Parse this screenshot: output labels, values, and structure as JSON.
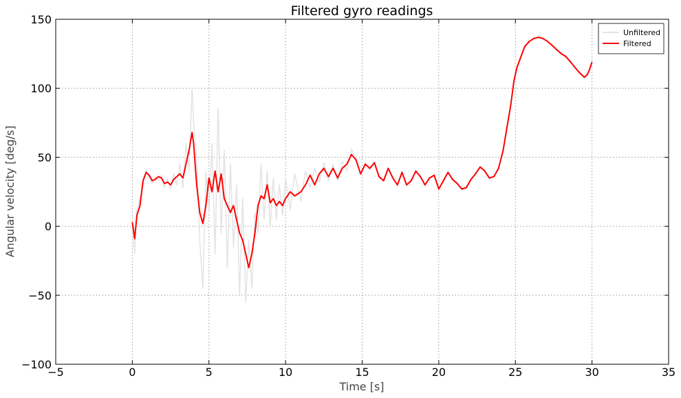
{
  "chart_data": {
    "type": "line",
    "title": "Filtered gyro readings",
    "xlabel": "Time [s]",
    "ylabel": "Angular velocity [deg/s]",
    "x": [
      0,
      0.15,
      0.3,
      0.5,
      0.7,
      0.9,
      1.1,
      1.3,
      1.5,
      1.7,
      1.9,
      2.1,
      2.3,
      2.5,
      2.7,
      2.9,
      3.1,
      3.3,
      3.5,
      3.7,
      3.9,
      4.0,
      4.2,
      4.4,
      4.6,
      4.8,
      5.0,
      5.2,
      5.4,
      5.6,
      5.8,
      6.0,
      6.2,
      6.4,
      6.6,
      6.8,
      7.0,
      7.2,
      7.4,
      7.6,
      7.8,
      8.0,
      8.2,
      8.4,
      8.6,
      8.8,
      9.0,
      9.2,
      9.4,
      9.6,
      9.8,
      10.0,
      10.3,
      10.6,
      11.0,
      11.3,
      11.6,
      11.9,
      12.2,
      12.5,
      12.8,
      13.1,
      13.4,
      13.7,
      14.0,
      14.3,
      14.6,
      14.9,
      15.2,
      15.5,
      15.8,
      16.1,
      16.4,
      16.7,
      17.0,
      17.3,
      17.6,
      17.9,
      18.2,
      18.5,
      18.8,
      19.1,
      19.4,
      19.7,
      20.0,
      20.3,
      20.6,
      20.9,
      21.2,
      21.5,
      21.8,
      22.1,
      22.4,
      22.7,
      23.0,
      23.3,
      23.6,
      23.9,
      24.2,
      24.5,
      24.7,
      24.9,
      25.1,
      25.3,
      25.6,
      25.9,
      26.2,
      26.5,
      26.8,
      27.1,
      27.4,
      27.7,
      28.0,
      28.3,
      28.6,
      28.9,
      29.2,
      29.5,
      29.7,
      29.85,
      30.0
    ],
    "series": [
      {
        "name": "Unfiltered",
        "color": "#e3e3e3",
        "values": [
          2,
          -20,
          12,
          20,
          30,
          41,
          35,
          31,
          36,
          33,
          37,
          28,
          34,
          27,
          38,
          30,
          45,
          28,
          60,
          40,
          100,
          75,
          50,
          -10,
          -45,
          40,
          10,
          60,
          -20,
          85,
          -5,
          55,
          -30,
          45,
          -15,
          30,
          -50,
          20,
          -55,
          -10,
          -45,
          10,
          -5,
          45,
          5,
          40,
          0,
          35,
          5,
          30,
          8,
          35,
          12,
          38,
          18,
          40,
          28,
          42,
          32,
          46,
          33,
          45,
          33,
          47,
          40,
          56,
          49,
          37,
          46,
          41,
          47,
          35,
          34,
          41,
          36,
          29,
          40,
          29,
          34,
          39,
          37,
          29,
          36,
          36,
          28,
          32,
          40,
          33,
          32,
          26,
          29,
          33,
          39,
          42,
          41,
          34,
          37,
          41,
          56,
          74,
          89,
          104,
          116,
          120,
          131,
          133,
          137,
          136,
          137,
          133,
          132,
          127,
          126,
          122,
          120,
          114,
          112,
          107,
          111,
          113,
          120
        ]
      },
      {
        "name": "Filtered",
        "color": "#ff0000",
        "values": [
          3,
          -9,
          8,
          15,
          33,
          39,
          37,
          33,
          34,
          36,
          35,
          31,
          32,
          30,
          34,
          36,
          38,
          35,
          45,
          55,
          68,
          60,
          30,
          10,
          2,
          15,
          35,
          25,
          40,
          25,
          38,
          20,
          15,
          10,
          15,
          5,
          -5,
          -10,
          -20,
          -30,
          -20,
          -5,
          15,
          22,
          20,
          30,
          17,
          20,
          15,
          18,
          15,
          20,
          25,
          22,
          25,
          30,
          37,
          30,
          38,
          42,
          36,
          42,
          35,
          42,
          45,
          52,
          48,
          38,
          45,
          42,
          46,
          36,
          33,
          42,
          35,
          30,
          39,
          30,
          33,
          40,
          36,
          30,
          35,
          37,
          27,
          33,
          39,
          34,
          31,
          27,
          28,
          34,
          38,
          43,
          40,
          35,
          36,
          42,
          55,
          75,
          88,
          105,
          115,
          121,
          130,
          134,
          136,
          137,
          136,
          134,
          131,
          128,
          125,
          123,
          119,
          115,
          111,
          108,
          110,
          114,
          119
        ]
      }
    ],
    "xlim": [
      -5,
      35
    ],
    "xticks": [
      {
        "value": -5,
        "label": "−5"
      },
      0,
      5,
      10,
      15,
      20,
      25,
      30,
      35
    ],
    "ylim": [
      -100,
      150
    ],
    "yticks": [
      {
        "value": -100,
        "label": "−100"
      },
      {
        "value": -50,
        "label": "−50"
      },
      0,
      50,
      100,
      150
    ],
    "grid": true,
    "legend": "upper right"
  }
}
